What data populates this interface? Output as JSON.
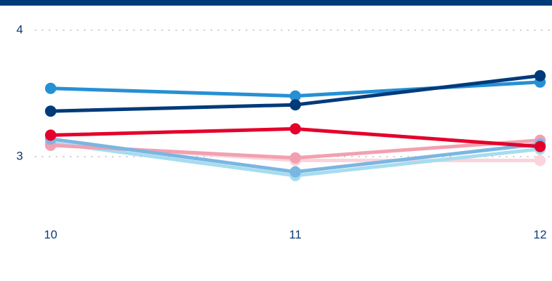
{
  "chart_data": {
    "type": "line",
    "x": [
      10,
      11,
      12
    ],
    "xlim": [
      10,
      12
    ],
    "xticks": [
      10,
      11,
      12
    ],
    "ylim": [
      2.6,
      4.2
    ],
    "yticks": [
      3,
      4
    ],
    "grid": true,
    "series": [
      {
        "color": "#fbd3dc",
        "values": [
          3.1,
          2.97,
          2.97
        ]
      },
      {
        "color": "#a6dcef",
        "values": [
          3.11,
          2.85,
          3.06
        ]
      },
      {
        "color": "#f2a0b0",
        "values": [
          3.09,
          2.99,
          3.13
        ]
      },
      {
        "color": "#7ab6e2",
        "values": [
          3.14,
          2.88,
          3.1
        ]
      },
      {
        "color": "#2690d4",
        "values": [
          3.54,
          3.48,
          3.59
        ]
      },
      {
        "color": "#e4002b",
        "values": [
          3.17,
          3.22,
          3.08
        ]
      },
      {
        "color": "#003a7a",
        "values": [
          3.36,
          3.41,
          3.64
        ]
      }
    ]
  }
}
